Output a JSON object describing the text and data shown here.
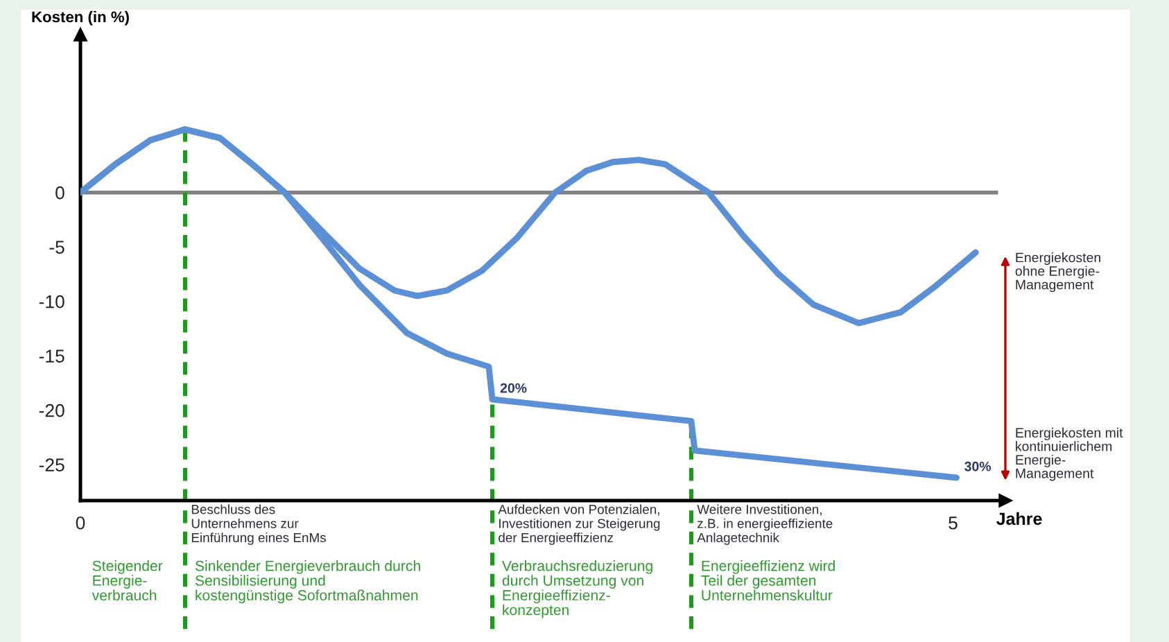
{
  "chart_data": {
    "type": "line",
    "ylabel": "Kosten (in %)",
    "xlabel": "Jahre",
    "xlim": [
      0,
      5.3
    ],
    "ylim": [
      -28.3,
      14.5
    ],
    "xticks": [
      0,
      5
    ],
    "yticks": [
      0,
      -5,
      -10,
      -15,
      -20,
      -25
    ],
    "grid": false,
    "line_style": "solid",
    "marker": "none",
    "series": [
      {
        "color": "#5b8fd6",
        "x": [
          0,
          0.2,
          0.4,
          0.6,
          0.8,
          1.0,
          1.17,
          1.4,
          1.6,
          1.8,
          1.93,
          2.1,
          2.3,
          2.5,
          2.72,
          2.9,
          3.05,
          3.2,
          3.35,
          3.6,
          3.8,
          4.0,
          4.2,
          4.46,
          4.7,
          4.9,
          5.13
        ],
        "values": [
          0,
          2.6,
          4.8,
          5.8,
          5.0,
          2.4,
          0,
          -3.8,
          -7.0,
          -9.0,
          -9.5,
          -9.0,
          -7.2,
          -4.2,
          0,
          2.0,
          2.8,
          3.0,
          2.6,
          0,
          -4,
          -7.5,
          -10.3,
          -12,
          -11,
          -8.6,
          -5.5
        ]
      },
      {
        "color": "#5b8fd6",
        "x": [
          0,
          0.2,
          0.4,
          0.6,
          0.8,
          1.0,
          1.17,
          1.4,
          1.6,
          1.87,
          2.1,
          2.34,
          2.36,
          3.5,
          3.52,
          5.02
        ],
        "values": [
          0,
          2.6,
          4.8,
          5.8,
          5.0,
          2.4,
          0,
          -4.5,
          -8.5,
          -12.9,
          -14.8,
          -16,
          -19,
          -21,
          -23.7,
          -26.2
        ]
      }
    ],
    "ref_lines": [
      {
        "axis": "y",
        "value": 0,
        "color": "#808080",
        "line_style": "solid"
      },
      {
        "axis": "x",
        "value": 0.6,
        "color": "#1a9c1a",
        "line_style": "dashed",
        "label": "Beschluss des\nUnternehmens zur\nEinführung eines EnMs"
      },
      {
        "axis": "x",
        "value": 2.36,
        "color": "#1a9c1a",
        "line_style": "dashed",
        "label": "Aufdecken von Potenzialen,\nInvestitionen zur Steigerung\nder Energieeffizienz"
      },
      {
        "axis": "x",
        "value": 3.5,
        "color": "#1a9c1a",
        "line_style": "dashed",
        "label": "Weitere Investitionen,\nz.B. in energieeffiziente\nAnlagetechnik"
      }
    ],
    "annotations": [
      "Steigender\nEnergie-\nverbrauch",
      "Sinkender Energieverbrauch durch\nSensibilisierung und\nkostengünstige Sofortmaßnahmen",
      "Verbrauchsreduzierung\ndurch Umsetzung von\nEnergieeffizienz-\nkonzepten",
      "Energieeffizienz wird\nTeil der gesamten\nUnternehmenskultur",
      {
        "text": "20%",
        "x": 2.36,
        "y": -19
      },
      {
        "text": "30%",
        "x": 5.02,
        "y": -26.2
      },
      "Energiekosten\nohne Energie-\nManagement",
      "Energiekosten mit\nkontinuierlichem\nEnergie-\nManagement"
    ]
  }
}
